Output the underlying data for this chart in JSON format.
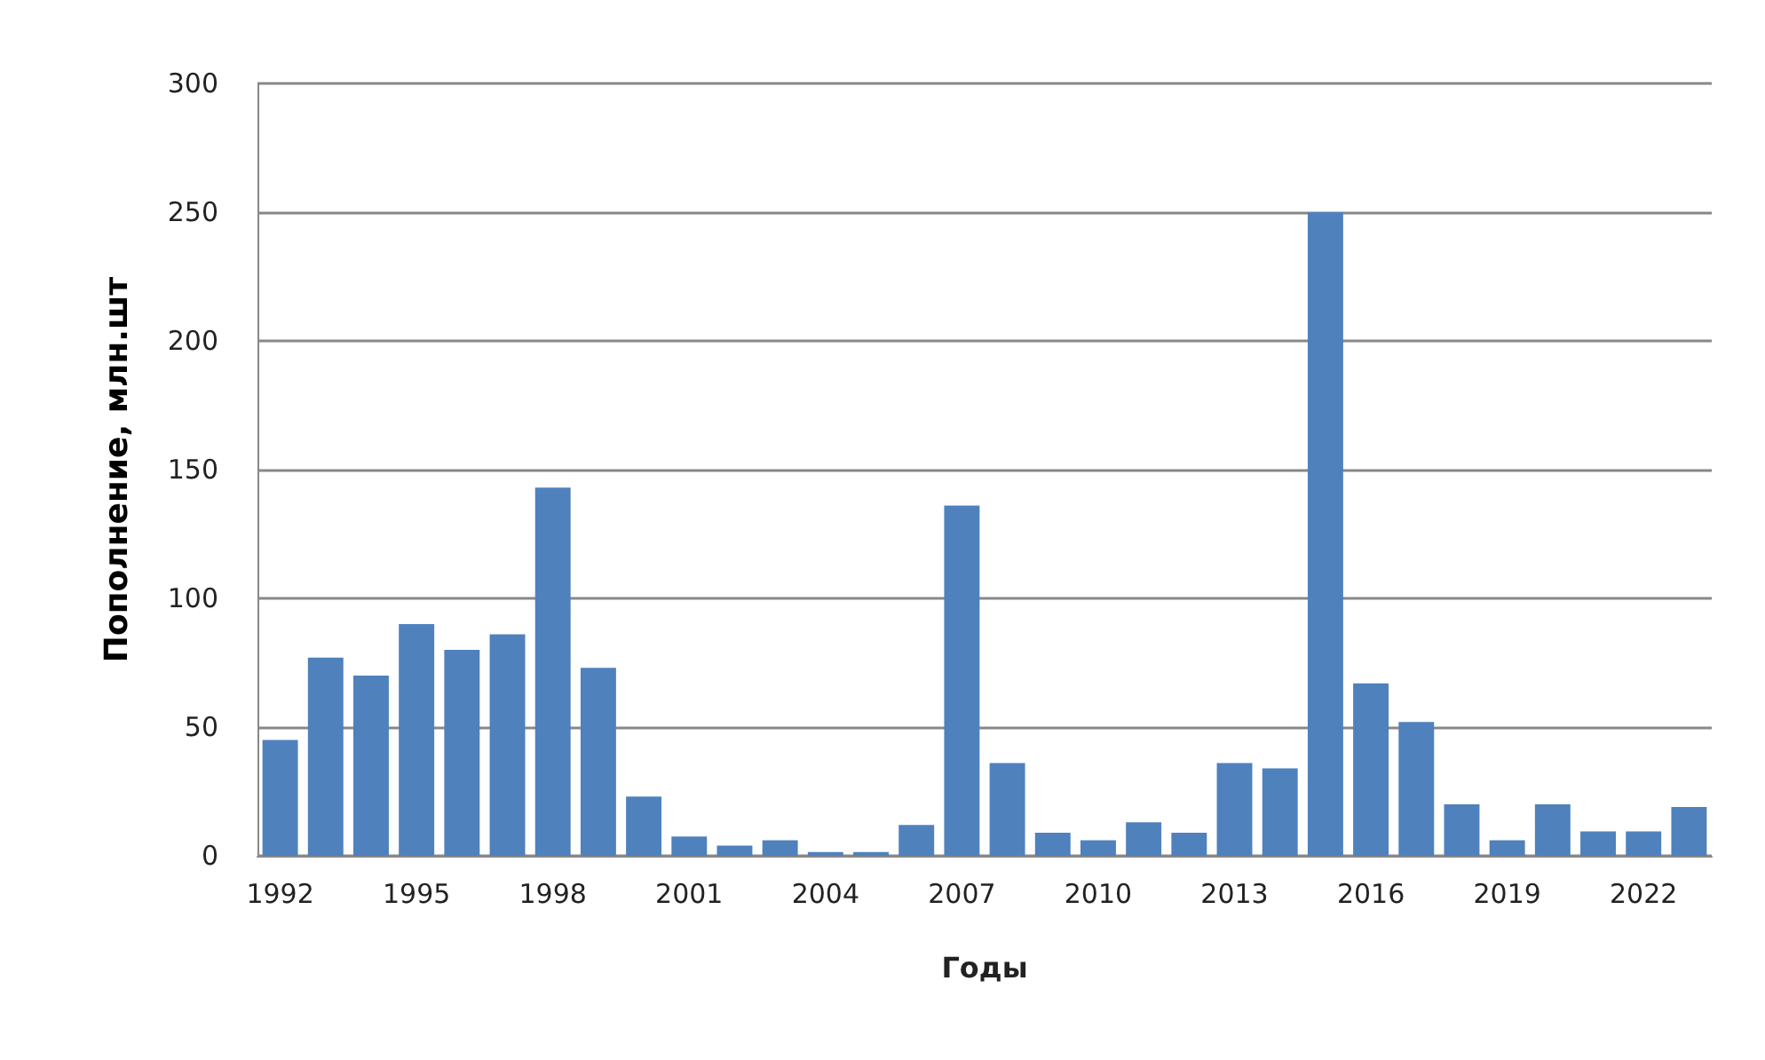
{
  "chart_data": {
    "type": "bar",
    "xlabel": "Годы",
    "ylabel": "Пополнение, млн.шт",
    "categories": [
      "1992",
      null,
      null,
      "1995",
      null,
      null,
      "1998",
      null,
      null,
      "2001",
      null,
      null,
      "2004",
      null,
      null,
      "2007",
      null,
      null,
      "2010",
      null,
      null,
      "2013",
      null,
      null,
      "2016",
      null,
      null,
      "2019",
      null,
      null,
      "2022",
      null
    ],
    "values": [
      45,
      77,
      70,
      90,
      80,
      86,
      143,
      73,
      23,
      7.5,
      4,
      6,
      1.5,
      1.5,
      12,
      136,
      36,
      9,
      6,
      13,
      9,
      36,
      34,
      250,
      67,
      52,
      20,
      6,
      20,
      9.5,
      9.5,
      19
    ],
    "color": "#4f81bd",
    "ylim": [
      0,
      300
    ],
    "yticks": [
      0,
      50,
      100,
      150,
      200,
      250,
      300
    ],
    "grid": "y"
  }
}
